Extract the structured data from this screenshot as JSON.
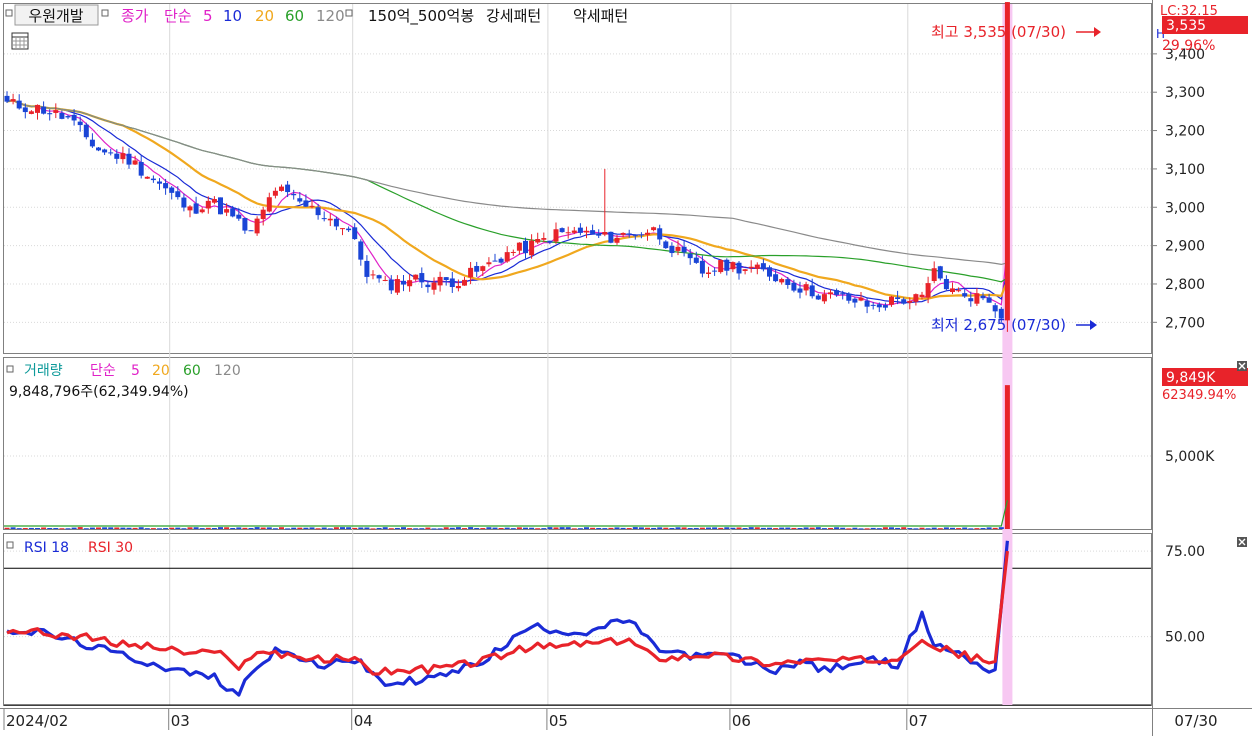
{
  "colors": {
    "up": "#e8232a",
    "down": "#1a45d6",
    "ma5": "#e022c8",
    "ma10": "#1a2bd6",
    "ma20": "#f0a81e",
    "ma60": "#2aa02a",
    "ma120": "#8a8a8a",
    "rsi18": "#1a2bd6",
    "rsi30": "#e8232a",
    "highlight": "#f7c8f2",
    "grid": "#d9d9d9",
    "axis_text": "#222222"
  },
  "price_panel": {
    "stock_name": "우원개발",
    "legend_close": "종가",
    "legend_simple": "단순",
    "ma_periods": [
      "5",
      "10",
      "20",
      "60",
      "120"
    ],
    "pattern_label": "150억_500억봉",
    "strong_pattern": "강세패턴",
    "weak_pattern": "약세패턴",
    "high_label": "최고 3,535 (07/30)",
    "low_label": "최저 2,675 (07/30)",
    "last_price_badge": "3,535",
    "change_pct": "29.96%",
    "lc_text": "LC:32.15",
    "h_text": "H"
  },
  "volume_panel": {
    "title": "거래량",
    "legend_simple": "단순",
    "ma_periods": [
      "5",
      "20",
      "60",
      "120"
    ],
    "info": "9,848,796주(62,349.94%)",
    "last_badge": "9,849K",
    "pct_badge": "62349.94%"
  },
  "rsi_panel": {
    "labels": [
      "RSI 18",
      "RSI 30"
    ]
  },
  "x_axis": {
    "labels": [
      "2024/02",
      "03",
      "04",
      "05",
      "06",
      "07"
    ],
    "cursor_date": "07/30"
  },
  "chart_data": [
    {
      "type": "candlestick",
      "title": "우원개발",
      "y_ticks": [
        "3,400",
        "3,300",
        "3,200",
        "3,100",
        "3,000",
        "2,900",
        "2,800",
        "2,700"
      ],
      "ylim": [
        2620,
        3530
      ],
      "x_range": [
        "2024/02",
        "07/30"
      ],
      "moving_averages": [
        "5",
        "10",
        "20",
        "60",
        "120"
      ],
      "last_candle": {
        "date": "07/30",
        "open": 2705,
        "high": 3535,
        "low": 2675,
        "close": 3535
      },
      "anchor_closes": [
        [
          0,
          3270
        ],
        [
          6,
          3255
        ],
        [
          10,
          3230
        ],
        [
          15,
          3150
        ],
        [
          20,
          3125
        ],
        [
          25,
          3060
        ],
        [
          30,
          2990
        ],
        [
          33,
          3020
        ],
        [
          36,
          2985
        ],
        [
          40,
          2930
        ],
        [
          44,
          3050
        ],
        [
          48,
          3010
        ],
        [
          52,
          2980
        ],
        [
          56,
          2940
        ],
        [
          59,
          2830
        ],
        [
          62,
          2795
        ],
        [
          66,
          2815
        ],
        [
          70,
          2805
        ],
        [
          74,
          2810
        ],
        [
          78,
          2840
        ],
        [
          82,
          2880
        ],
        [
          86,
          2900
        ],
        [
          90,
          2930
        ],
        [
          94,
          2935
        ],
        [
          98,
          2920
        ],
        [
          102,
          2930
        ],
        [
          106,
          2940
        ],
        [
          110,
          2880
        ],
        [
          114,
          2830
        ],
        [
          118,
          2850
        ],
        [
          122,
          2840
        ],
        [
          126,
          2820
        ],
        [
          130,
          2790
        ],
        [
          134,
          2770
        ],
        [
          138,
          2760
        ],
        [
          142,
          2740
        ],
        [
          146,
          2760
        ],
        [
          150,
          2760
        ],
        [
          152,
          2830
        ],
        [
          155,
          2780
        ],
        [
          158,
          2770
        ],
        [
          161,
          2760
        ],
        [
          163,
          2725
        ]
      ]
    },
    {
      "type": "bar",
      "title": "거래량",
      "y_ticks": [
        "5,000K"
      ],
      "ylim": [
        0,
        10200000
      ],
      "last_value": 9848796,
      "ma_periods": [
        "5",
        "20",
        "60",
        "120"
      ]
    },
    {
      "type": "line",
      "title": "RSI",
      "y_ticks": [
        "75.00",
        "50.00"
      ],
      "ylim": [
        30,
        80
      ],
      "reference_lines": [
        70,
        30
      ],
      "series": [
        {
          "name": "RSI 18",
          "values": [
            [
              0,
              52
            ],
            [
              6,
              51
            ],
            [
              12,
              48
            ],
            [
              18,
              45
            ],
            [
              22,
              43
            ],
            [
              28,
              40
            ],
            [
              34,
              38
            ],
            [
              38,
              33
            ],
            [
              40,
              40
            ],
            [
              44,
              46
            ],
            [
              48,
              44
            ],
            [
              52,
              40
            ],
            [
              54,
              44
            ],
            [
              58,
              42
            ],
            [
              62,
              36
            ],
            [
              66,
              37
            ],
            [
              70,
              38
            ],
            [
              74,
              40
            ],
            [
              78,
              43
            ],
            [
              82,
              48
            ],
            [
              86,
              53
            ],
            [
              90,
              52
            ],
            [
              94,
              51
            ],
            [
              98,
              53
            ],
            [
              102,
              55
            ],
            [
              106,
              47
            ],
            [
              110,
              45
            ],
            [
              114,
              44
            ],
            [
              118,
              45
            ],
            [
              122,
              42
            ],
            [
              126,
              40
            ],
            [
              130,
              43
            ],
            [
              134,
              40
            ],
            [
              138,
              42
            ],
            [
              142,
              43
            ],
            [
              146,
              42
            ],
            [
              150,
              56
            ],
            [
              152,
              48
            ],
            [
              156,
              45
            ],
            [
              160,
              41
            ],
            [
              162,
              40
            ],
            [
              164,
              78
            ]
          ]
        },
        {
          "name": "RSI 30",
          "values": [
            [
              0,
              52
            ],
            [
              6,
              51
            ],
            [
              12,
              50
            ],
            [
              18,
              48
            ],
            [
              24,
              47
            ],
            [
              30,
              45
            ],
            [
              36,
              45
            ],
            [
              38,
              41
            ],
            [
              42,
              46
            ],
            [
              48,
              44
            ],
            [
              52,
              43
            ],
            [
              56,
              44
            ],
            [
              60,
              40
            ],
            [
              66,
              40
            ],
            [
              72,
              41
            ],
            [
              78,
              43
            ],
            [
              82,
              45
            ],
            [
              86,
              47
            ],
            [
              90,
              47
            ],
            [
              94,
              48
            ],
            [
              98,
              48
            ],
            [
              102,
              49
            ],
            [
              106,
              44
            ],
            [
              110,
              44
            ],
            [
              114,
              45
            ],
            [
              118,
              44
            ],
            [
              122,
              43
            ],
            [
              126,
              42
            ],
            [
              130,
              43
            ],
            [
              134,
              43
            ],
            [
              138,
              43
            ],
            [
              142,
              43
            ],
            [
              146,
              44
            ],
            [
              150,
              50
            ],
            [
              152,
              47
            ],
            [
              156,
              45
            ],
            [
              160,
              43
            ],
            [
              162,
              43
            ],
            [
              164,
              75
            ]
          ]
        }
      ]
    }
  ]
}
